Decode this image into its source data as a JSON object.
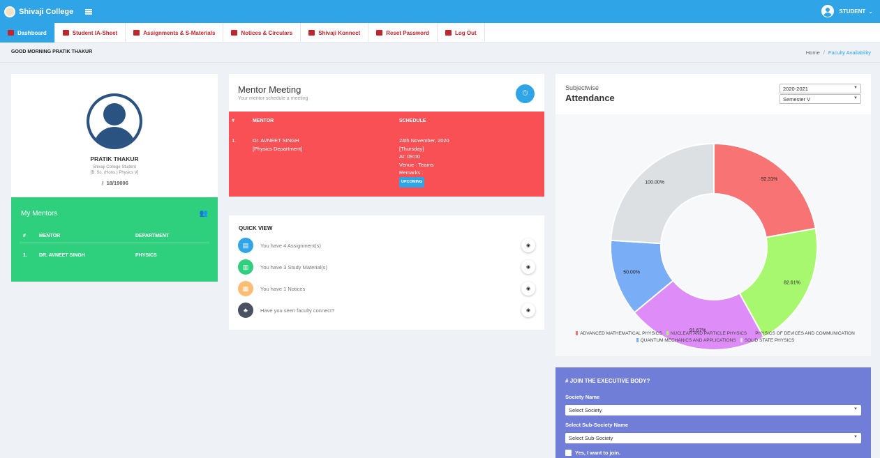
{
  "app": {
    "name": "Shivaji College",
    "user_label": "STUDENT"
  },
  "nav": [
    {
      "label": "Dashboard",
      "active": true
    },
    {
      "label": "Student IA-Sheet"
    },
    {
      "label": "Assignments & S-Materials"
    },
    {
      "label": "Notices & Circulars"
    },
    {
      "label": "Shivaji Konnect"
    },
    {
      "label": "Reset Password"
    },
    {
      "label": "Log Out"
    }
  ],
  "greeting": "GOOD MORNING PRATIK THAKUR",
  "breadcrumb": {
    "home": "Home",
    "separator": "/",
    "current": "Faculty Availability"
  },
  "profile": {
    "name": "PRATIK THAKUR",
    "line1": "Shivaji College Student",
    "line2": "[B. Sc. (Hons.) Physics V]",
    "roll": "18/19006"
  },
  "mentors": {
    "title": "My Mentors",
    "headers": {
      "num": "#",
      "mentor": "MENTOR",
      "department": "DEPARTMENT"
    },
    "rows": [
      {
        "num": "1.",
        "mentor": "DR. AVNEET SINGH",
        "department": "PHYSICS"
      }
    ]
  },
  "meeting": {
    "title": "Mentor Meeting",
    "subtitle": "Your mentor schedule a meeting",
    "headers": {
      "num": "#",
      "mentor": "MENTOR",
      "schedule": "SCHEDULE"
    },
    "row": {
      "num": "1.",
      "mentor_name": "Dr. AVNEET SINGH",
      "mentor_dept": "[Physics Department]",
      "date": "24th November, 2020",
      "day": "[Thursday]",
      "time": "At: 09:00",
      "venue": "Venue : Teams",
      "remarks": "Remarks :",
      "status": "UPCOMING"
    }
  },
  "quick_view": {
    "title": "QUICK VIEW",
    "items": [
      {
        "text": "You have 4 Assignment(s)",
        "color": "#2fa4e7"
      },
      {
        "text": "You have 3 Study Material(s)",
        "color": "#2ed07d"
      },
      {
        "text": "You have 1 Notices",
        "color": "#fbbc73"
      },
      {
        "text": "Have you seen faculty connect?",
        "color": "#4a5160"
      }
    ]
  },
  "attendance": {
    "subtitle": "Subjectwise",
    "title": "Attendance",
    "year": "2020-2021",
    "semester": "Semester V"
  },
  "chart_data": {
    "type": "pie",
    "donut": true,
    "series": [
      {
        "name": "ADVANCED MATHEMATICAL PHYSICS",
        "value": 92.31,
        "label": "92.31%",
        "color": "#f87373"
      },
      {
        "name": "NUCLEAR AND PARTICLE PHYSICS",
        "value": 82.61,
        "label": "82.61%",
        "color": "#a8f86f"
      },
      {
        "name": "PHYSICS OF DEVICES AND COMMUNICATION",
        "value": 91.67,
        "label": "91.67%",
        "color": "#de8df8"
      },
      {
        "name": "QUANTUM MECHANICS AND APPLICATIONS",
        "value": 50.0,
        "label": "50.00%",
        "color": "#79aef7"
      },
      {
        "name": "SOLID STATE PHYSICS",
        "value": 100.0,
        "label": "100.00%",
        "color": "#dde0e2"
      }
    ]
  },
  "join": {
    "title": "JOIN THE EXECUTIVE BODY?",
    "society_label": "Society Name",
    "society_value": "Select Society",
    "sub_label": "Select Sub-Society Name",
    "sub_value": "Select Sub-Society",
    "checkbox_label": "Yes, I want to join."
  }
}
